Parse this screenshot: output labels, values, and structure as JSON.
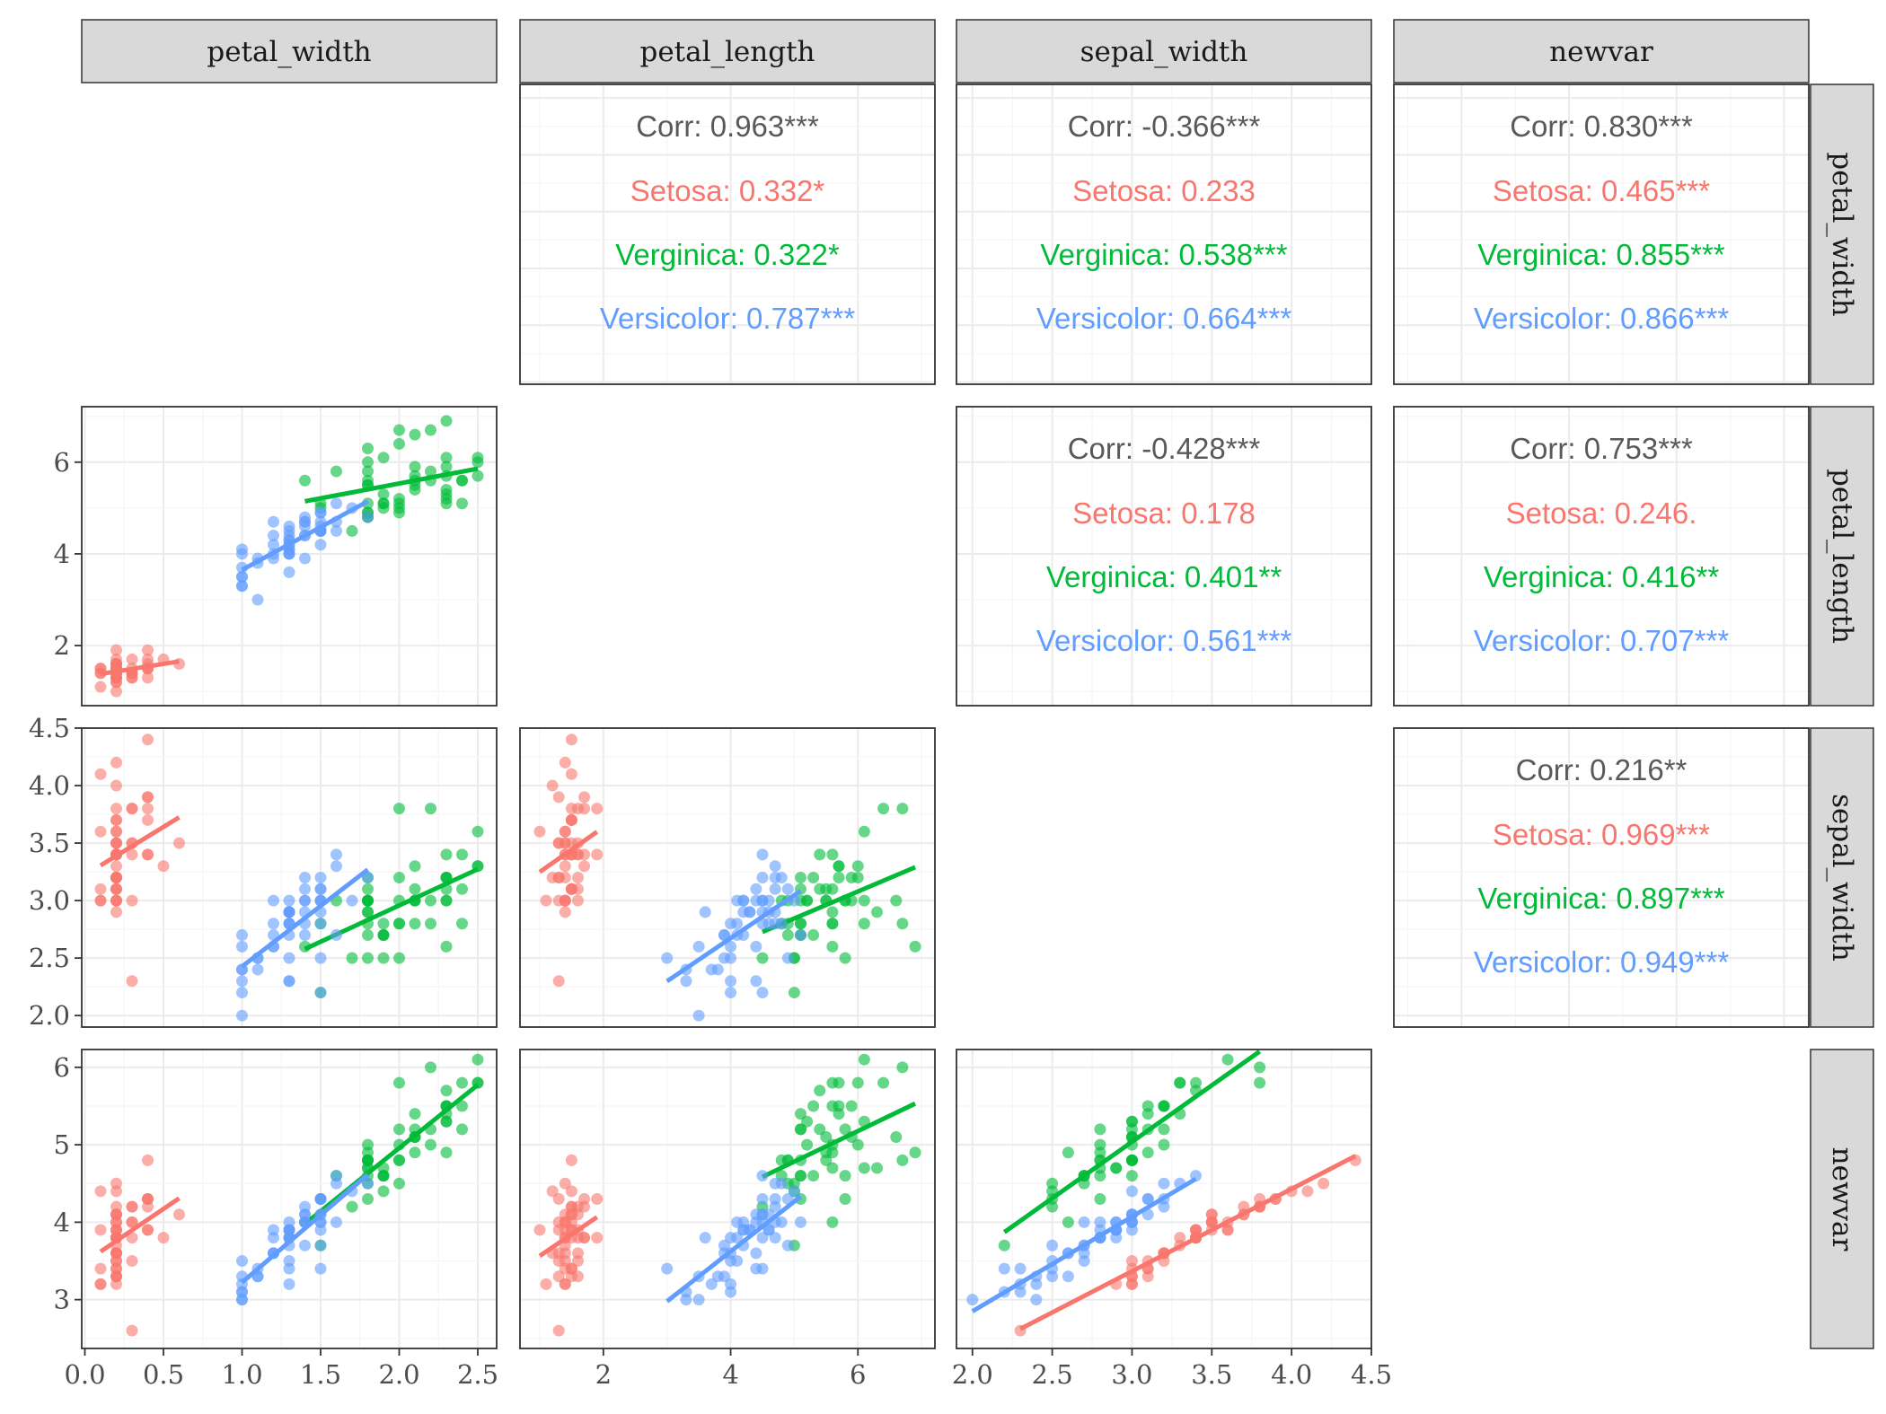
{
  "colors": {
    "setosa": "#F8766D",
    "virginica": "#00BA38",
    "versicolor": "#619CFF",
    "overall": "#595959",
    "strip_fill": "#D9D9D9",
    "grid_major": "#EBEBEB",
    "grid_minor": "#F5F5F5",
    "panel_border": "#333333"
  },
  "chart_data": {
    "type": "scatter",
    "variables": [
      "petal_width",
      "petal_length",
      "sepal_width",
      "newvar"
    ],
    "column_strips": [
      "petal_width",
      "petal_length",
      "sepal_width",
      "newvar"
    ],
    "row_strips": [
      "petal_width",
      "petal_length",
      "sepal_width",
      "newvar"
    ],
    "axis_ranges": {
      "petal_width": [
        -0.02,
        2.62
      ],
      "petal_length": [
        0.69,
        7.21
      ],
      "sepal_width": [
        1.9,
        4.5
      ],
      "newvar": [
        2.37,
        6.23
      ]
    },
    "x_ticks": {
      "petal_width": [
        "0.0",
        "0.5",
        "1.0",
        "1.5",
        "2.0",
        "2.5"
      ],
      "petal_length": [
        "2",
        "4",
        "6"
      ],
      "sepal_width": [
        "2.0",
        "2.5",
        "3.0",
        "3.5",
        "4.0",
        "4.5"
      ]
    },
    "y_ticks": {
      "petal_length": [
        "2",
        "4",
        "6"
      ],
      "sepal_width": [
        "2.0",
        "2.5",
        "3.0",
        "3.5",
        "4.0",
        "4.5"
      ],
      "newvar": [
        "3",
        "4",
        "5",
        "6"
      ]
    },
    "grid": true,
    "species": [
      "setosa",
      "virginica",
      "versicolor"
    ],
    "correlations": [
      {
        "row": "petal_width",
        "col": "petal_length",
        "lines": [
          {
            "text": "Corr: 0.963***",
            "group": "overall"
          },
          {
            "text": "Setosa: 0.332*",
            "group": "setosa"
          },
          {
            "text": "Verginica: 0.322*",
            "group": "virginica"
          },
          {
            "text": "Versicolor: 0.787***",
            "group": "versicolor"
          }
        ]
      },
      {
        "row": "petal_width",
        "col": "sepal_width",
        "lines": [
          {
            "text": "Corr: -0.366***",
            "group": "overall"
          },
          {
            "text": "Setosa: 0.233",
            "group": "setosa"
          },
          {
            "text": "Verginica: 0.538***",
            "group": "virginica"
          },
          {
            "text": "Versicolor: 0.664***",
            "group": "versicolor"
          }
        ]
      },
      {
        "row": "petal_width",
        "col": "newvar",
        "lines": [
          {
            "text": "Corr: 0.830***",
            "group": "overall"
          },
          {
            "text": "Setosa: 0.465***",
            "group": "setosa"
          },
          {
            "text": "Verginica: 0.855***",
            "group": "virginica"
          },
          {
            "text": "Versicolor: 0.866***",
            "group": "versicolor"
          }
        ]
      },
      {
        "row": "petal_length",
        "col": "sepal_width",
        "lines": [
          {
            "text": "Corr: -0.428***",
            "group": "overall"
          },
          {
            "text": "Setosa: 0.178",
            "group": "setosa"
          },
          {
            "text": "Verginica: 0.401**",
            "group": "virginica"
          },
          {
            "text": "Versicolor: 0.561***",
            "group": "versicolor"
          }
        ]
      },
      {
        "row": "petal_length",
        "col": "newvar",
        "lines": [
          {
            "text": "Corr: 0.753***",
            "group": "overall"
          },
          {
            "text": "Setosa: 0.246.",
            "group": "setosa"
          },
          {
            "text": "Verginica: 0.416**",
            "group": "virginica"
          },
          {
            "text": "Versicolor: 0.707***",
            "group": "versicolor"
          }
        ]
      },
      {
        "row": "sepal_width",
        "col": "newvar",
        "lines": [
          {
            "text": "Corr: 0.216**",
            "group": "overall"
          },
          {
            "text": "Setosa: 0.969***",
            "group": "setosa"
          },
          {
            "text": "Verginica: 0.897***",
            "group": "virginica"
          },
          {
            "text": "Versicolor: 0.949***",
            "group": "versicolor"
          }
        ]
      }
    ],
    "observations": {
      "setosa": [
        [
          0.2,
          1.4,
          3.5,
          4.1
        ],
        [
          0.2,
          1.4,
          3.0,
          3.4
        ],
        [
          0.2,
          1.3,
          3.2,
          3.6
        ],
        [
          0.2,
          1.5,
          3.1,
          3.3
        ],
        [
          0.2,
          1.4,
          3.6,
          4.0
        ],
        [
          0.4,
          1.7,
          3.9,
          4.3
        ],
        [
          0.3,
          1.4,
          3.4,
          3.8
        ],
        [
          0.2,
          1.5,
          3.4,
          3.9
        ],
        [
          0.2,
          1.4,
          2.9,
          3.2
        ],
        [
          0.1,
          1.5,
          3.1,
          3.4
        ],
        [
          0.2,
          1.5,
          3.7,
          4.1
        ],
        [
          0.2,
          1.6,
          3.4,
          3.8
        ],
        [
          0.1,
          1.4,
          3.0,
          3.2
        ],
        [
          0.1,
          1.1,
          3.0,
          3.2
        ],
        [
          0.2,
          1.2,
          4.0,
          4.4
        ],
        [
          0.4,
          1.5,
          4.4,
          4.8
        ],
        [
          0.4,
          1.3,
          3.9,
          4.3
        ],
        [
          0.3,
          1.4,
          3.5,
          4.0
        ],
        [
          0.3,
          1.7,
          3.8,
          4.2
        ],
        [
          0.3,
          1.5,
          3.8,
          4.2
        ],
        [
          0.2,
          1.7,
          3.4,
          3.8
        ],
        [
          0.4,
          1.5,
          3.7,
          4.2
        ],
        [
          0.2,
          1.0,
          3.6,
          3.9
        ],
        [
          0.5,
          1.7,
          3.3,
          3.8
        ],
        [
          0.2,
          1.9,
          3.4,
          3.8
        ],
        [
          0.2,
          1.6,
          3.0,
          3.3
        ],
        [
          0.4,
          1.6,
          3.4,
          3.9
        ],
        [
          0.2,
          1.5,
          3.5,
          4.0
        ],
        [
          0.2,
          1.4,
          3.4,
          3.8
        ],
        [
          0.2,
          1.6,
          3.2,
          3.6
        ],
        [
          0.2,
          1.6,
          3.1,
          3.5
        ],
        [
          0.4,
          1.5,
          3.4,
          3.9
        ],
        [
          0.1,
          1.5,
          4.1,
          4.4
        ],
        [
          0.2,
          1.4,
          4.2,
          4.5
        ],
        [
          0.2,
          1.5,
          3.1,
          3.4
        ],
        [
          0.2,
          1.2,
          3.2,
          3.6
        ],
        [
          0.2,
          1.3,
          3.5,
          3.9
        ],
        [
          0.1,
          1.4,
          3.6,
          3.9
        ],
        [
          0.2,
          1.3,
          3.0,
          3.3
        ],
        [
          0.2,
          1.5,
          3.4,
          3.8
        ],
        [
          0.3,
          1.3,
          3.5,
          4.0
        ],
        [
          0.3,
          1.3,
          2.3,
          2.6
        ],
        [
          0.2,
          1.3,
          3.2,
          3.5
        ],
        [
          0.6,
          1.6,
          3.5,
          4.1
        ],
        [
          0.4,
          1.9,
          3.8,
          4.3
        ],
        [
          0.3,
          1.4,
          3.0,
          3.5
        ],
        [
          0.2,
          1.6,
          3.8,
          4.2
        ],
        [
          0.2,
          1.4,
          3.2,
          3.6
        ],
        [
          0.2,
          1.5,
          3.7,
          4.1
        ],
        [
          0.2,
          1.4,
          3.3,
          3.7
        ]
      ],
      "versicolor": [
        [
          1.4,
          4.7,
          3.2,
          4.2
        ],
        [
          1.5,
          4.5,
          3.2,
          4.3
        ],
        [
          1.5,
          4.9,
          3.1,
          4.3
        ],
        [
          1.3,
          4.0,
          2.3,
          3.2
        ],
        [
          1.5,
          4.6,
          2.8,
          3.9
        ],
        [
          1.3,
          4.5,
          2.8,
          3.8
        ],
        [
          1.6,
          4.7,
          3.3,
          4.5
        ],
        [
          1.0,
          3.3,
          2.4,
          3.0
        ],
        [
          1.3,
          4.6,
          2.9,
          3.9
        ],
        [
          1.4,
          3.9,
          2.7,
          3.7
        ],
        [
          1.0,
          3.5,
          2.0,
          3.0
        ],
        [
          1.5,
          4.2,
          3.0,
          4.0
        ],
        [
          1.0,
          4.0,
          2.2,
          3.1
        ],
        [
          1.4,
          4.7,
          2.9,
          4.0
        ],
        [
          1.3,
          3.6,
          2.9,
          3.8
        ],
        [
          1.4,
          4.4,
          3.1,
          4.1
        ],
        [
          1.5,
          4.5,
          3.0,
          4.1
        ],
        [
          1.0,
          4.1,
          2.7,
          3.5
        ],
        [
          1.5,
          4.5,
          2.2,
          3.4
        ],
        [
          1.1,
          3.9,
          2.5,
          3.3
        ],
        [
          1.8,
          4.8,
          3.2,
          4.5
        ],
        [
          1.3,
          4.0,
          2.8,
          3.8
        ],
        [
          1.5,
          4.9,
          2.5,
          3.7
        ],
        [
          1.2,
          4.7,
          2.8,
          3.8
        ],
        [
          1.3,
          4.3,
          2.9,
          3.9
        ],
        [
          1.4,
          4.4,
          3.0,
          4.0
        ],
        [
          1.4,
          4.8,
          2.8,
          4.0
        ],
        [
          1.7,
          5.0,
          3.0,
          4.4
        ],
        [
          1.5,
          4.5,
          2.9,
          4.0
        ],
        [
          1.0,
          3.5,
          2.6,
          3.3
        ],
        [
          1.1,
          3.8,
          2.4,
          3.3
        ],
        [
          1.0,
          3.7,
          2.4,
          3.2
        ],
        [
          1.2,
          3.9,
          2.7,
          3.6
        ],
        [
          1.6,
          5.1,
          2.7,
          4.0
        ],
        [
          1.5,
          4.5,
          3.0,
          4.1
        ],
        [
          1.6,
          4.5,
          3.4,
          4.6
        ],
        [
          1.5,
          4.7,
          3.1,
          4.3
        ],
        [
          1.3,
          4.4,
          2.3,
          3.4
        ],
        [
          1.3,
          4.1,
          3.0,
          4.0
        ],
        [
          1.3,
          4.0,
          2.5,
          3.5
        ],
        [
          1.2,
          4.4,
          2.6,
          3.6
        ],
        [
          1.4,
          4.6,
          3.0,
          4.1
        ],
        [
          1.2,
          4.0,
          2.6,
          3.6
        ],
        [
          1.0,
          3.3,
          2.3,
          3.1
        ],
        [
          1.3,
          4.2,
          2.7,
          3.7
        ],
        [
          1.2,
          4.2,
          3.0,
          3.9
        ],
        [
          1.3,
          4.2,
          2.9,
          3.9
        ],
        [
          1.3,
          4.3,
          2.9,
          3.9
        ],
        [
          1.1,
          3.0,
          2.5,
          3.4
        ],
        [
          1.3,
          4.1,
          2.8,
          3.8
        ]
      ],
      "virginica": [
        [
          2.5,
          6.0,
          3.3,
          5.8
        ],
        [
          1.9,
          5.1,
          2.7,
          4.6
        ],
        [
          2.1,
          5.9,
          3.0,
          5.1
        ],
        [
          1.8,
          5.6,
          2.9,
          4.7
        ],
        [
          2.2,
          5.8,
          3.0,
          5.2
        ],
        [
          2.1,
          6.6,
          3.0,
          5.1
        ],
        [
          1.7,
          4.5,
          2.5,
          4.2
        ],
        [
          1.8,
          6.3,
          2.9,
          4.7
        ],
        [
          1.8,
          5.8,
          2.5,
          4.3
        ],
        [
          2.5,
          6.1,
          3.6,
          6.1
        ],
        [
          2.0,
          5.1,
          3.2,
          5.2
        ],
        [
          1.9,
          5.3,
          2.7,
          4.6
        ],
        [
          2.1,
          5.5,
          3.0,
          5.1
        ],
        [
          2.0,
          5.0,
          2.5,
          4.5
        ],
        [
          2.4,
          5.1,
          2.8,
          5.2
        ],
        [
          2.3,
          5.3,
          3.2,
          5.5
        ],
        [
          1.8,
          5.5,
          3.0,
          4.8
        ],
        [
          2.2,
          6.7,
          3.8,
          6.0
        ],
        [
          2.3,
          6.9,
          2.6,
          4.9
        ],
        [
          1.5,
          5.0,
          2.2,
          3.7
        ],
        [
          2.3,
          5.7,
          3.2,
          5.5
        ],
        [
          2.0,
          4.9,
          2.8,
          4.8
        ],
        [
          2.0,
          6.7,
          2.8,
          4.8
        ],
        [
          1.8,
          4.9,
          2.7,
          4.5
        ],
        [
          2.1,
          5.7,
          3.3,
          5.4
        ],
        [
          1.8,
          6.0,
          3.2,
          5.0
        ],
        [
          1.8,
          4.8,
          2.8,
          4.6
        ],
        [
          1.8,
          4.9,
          3.0,
          4.8
        ],
        [
          2.1,
          5.6,
          2.8,
          4.9
        ],
        [
          1.6,
          5.8,
          3.0,
          4.6
        ],
        [
          1.9,
          6.1,
          2.8,
          4.7
        ],
        [
          2.0,
          6.4,
          3.8,
          5.8
        ],
        [
          2.2,
          5.6,
          2.8,
          5.0
        ],
        [
          1.5,
          5.1,
          2.8,
          4.3
        ],
        [
          1.4,
          5.6,
          2.6,
          4.0
        ],
        [
          2.3,
          6.1,
          3.0,
          5.3
        ],
        [
          2.4,
          5.6,
          3.4,
          5.8
        ],
        [
          1.8,
          5.5,
          3.1,
          4.9
        ],
        [
          1.8,
          4.8,
          3.0,
          4.8
        ],
        [
          2.1,
          5.4,
          3.1,
          5.2
        ],
        [
          2.4,
          5.6,
          3.1,
          5.5
        ],
        [
          2.3,
          5.1,
          3.1,
          5.4
        ],
        [
          1.9,
          5.1,
          2.7,
          4.6
        ],
        [
          2.3,
          5.9,
          3.2,
          5.5
        ],
        [
          2.5,
          5.7,
          3.3,
          5.8
        ],
        [
          2.3,
          5.2,
          3.0,
          5.3
        ],
        [
          1.9,
          5.0,
          2.5,
          4.4
        ],
        [
          2.0,
          5.2,
          3.0,
          5.0
        ],
        [
          2.3,
          5.4,
          3.4,
          5.7
        ],
        [
          1.8,
          5.1,
          3.0,
          4.8
        ]
      ]
    }
  }
}
